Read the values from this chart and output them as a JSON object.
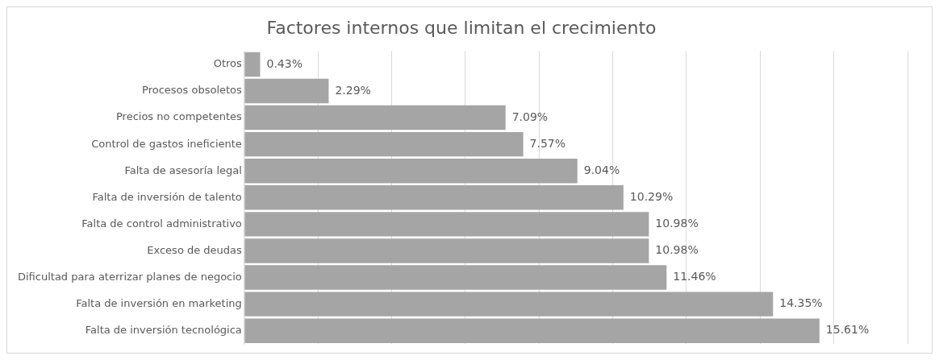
{
  "chart_data": {
    "type": "bar",
    "orientation": "horizontal",
    "title": "Factores internos que limitan el crecimiento",
    "categories": [
      "Otros",
      "Procesos obsoletos",
      "Precios no competentes",
      "Control de gastos ineficiente",
      "Falta de asesoría legal",
      "Falta de inversión de talento",
      "Falta de control administrativo",
      "Exceso de deudas",
      "Dificultad para aterrizar planes de negocio",
      "Falta de inversión en marketing",
      "Falta de inversión tecnológica"
    ],
    "values": [
      0.43,
      2.29,
      7.09,
      7.57,
      9.04,
      10.29,
      10.98,
      10.98,
      11.46,
      14.35,
      15.61
    ],
    "value_labels": [
      "0.43%",
      "2.29%",
      "7.09%",
      "7.57%",
      "9.04%",
      "10.29%",
      "10.98%",
      "10.98%",
      "11.46%",
      "14.35%",
      "15.61%"
    ],
    "color": "#a5a5a5",
    "xlim": [
      0,
      18
    ],
    "xticks": [
      {
        "value": 0,
        "label": null
      },
      {
        "value": 2,
        "label": null
      },
      {
        "value": 4,
        "label": null
      },
      {
        "value": 6,
        "label": null
      },
      {
        "value": 8,
        "label": null
      },
      {
        "value": 10,
        "label": null
      },
      {
        "value": 12,
        "label": null
      },
      {
        "value": 14,
        "label": null
      },
      {
        "value": 16,
        "label": null
      },
      {
        "value": 18,
        "label": null
      }
    ],
    "grid": "x",
    "tick_labels": "y",
    "legend": false
  }
}
